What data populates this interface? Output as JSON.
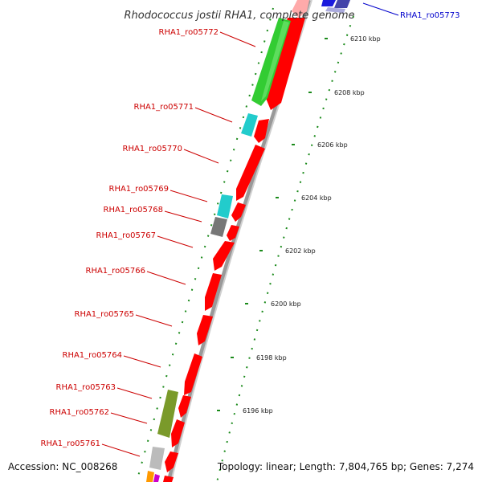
{
  "title": "Rhodococcus jostii RHA1, complete genome",
  "accession": "Accession: NC_008268",
  "topology": "Topology: linear; Length: 7,804,765 bp; Genes: 7,274",
  "colors": {
    "gene_label": "#cc0000",
    "highlight_label": "#0000cc",
    "gene_red": "#ff0000",
    "gene_green": "#33cc33",
    "gene_cyan": "#22cccc",
    "gene_gray": "#777777",
    "gene_olive": "#7a9a2a",
    "gene_lightgray": "#bbbbbb",
    "gene_blue": "#1a1add",
    "ruler_dots": "#1a8a1a"
  },
  "ticks": [
    "6210 kbp",
    "6208 kbp",
    "6206 kbp",
    "6204 kbp",
    "6202 kbp",
    "6200 kbp",
    "6198 kbp",
    "6196 kbp"
  ],
  "genes": [
    {
      "label": "RHA1_ro05773",
      "kind": "highlight"
    },
    {
      "label": "RHA1_ro05772",
      "kind": "gene"
    },
    {
      "label": "RHA1_ro05771",
      "kind": "gene"
    },
    {
      "label": "RHA1_ro05770",
      "kind": "gene"
    },
    {
      "label": "RHA1_ro05769",
      "kind": "gene"
    },
    {
      "label": "RHA1_ro05768",
      "kind": "gene"
    },
    {
      "label": "RHA1_ro05767",
      "kind": "gene"
    },
    {
      "label": "RHA1_ro05766",
      "kind": "gene"
    },
    {
      "label": "RHA1_ro05765",
      "kind": "gene"
    },
    {
      "label": "RHA1_ro05764",
      "kind": "gene"
    },
    {
      "label": "RHA1_ro05763",
      "kind": "gene"
    },
    {
      "label": "RHA1_ro05762",
      "kind": "gene"
    },
    {
      "label": "RHA1_ro05761",
      "kind": "gene"
    }
  ]
}
